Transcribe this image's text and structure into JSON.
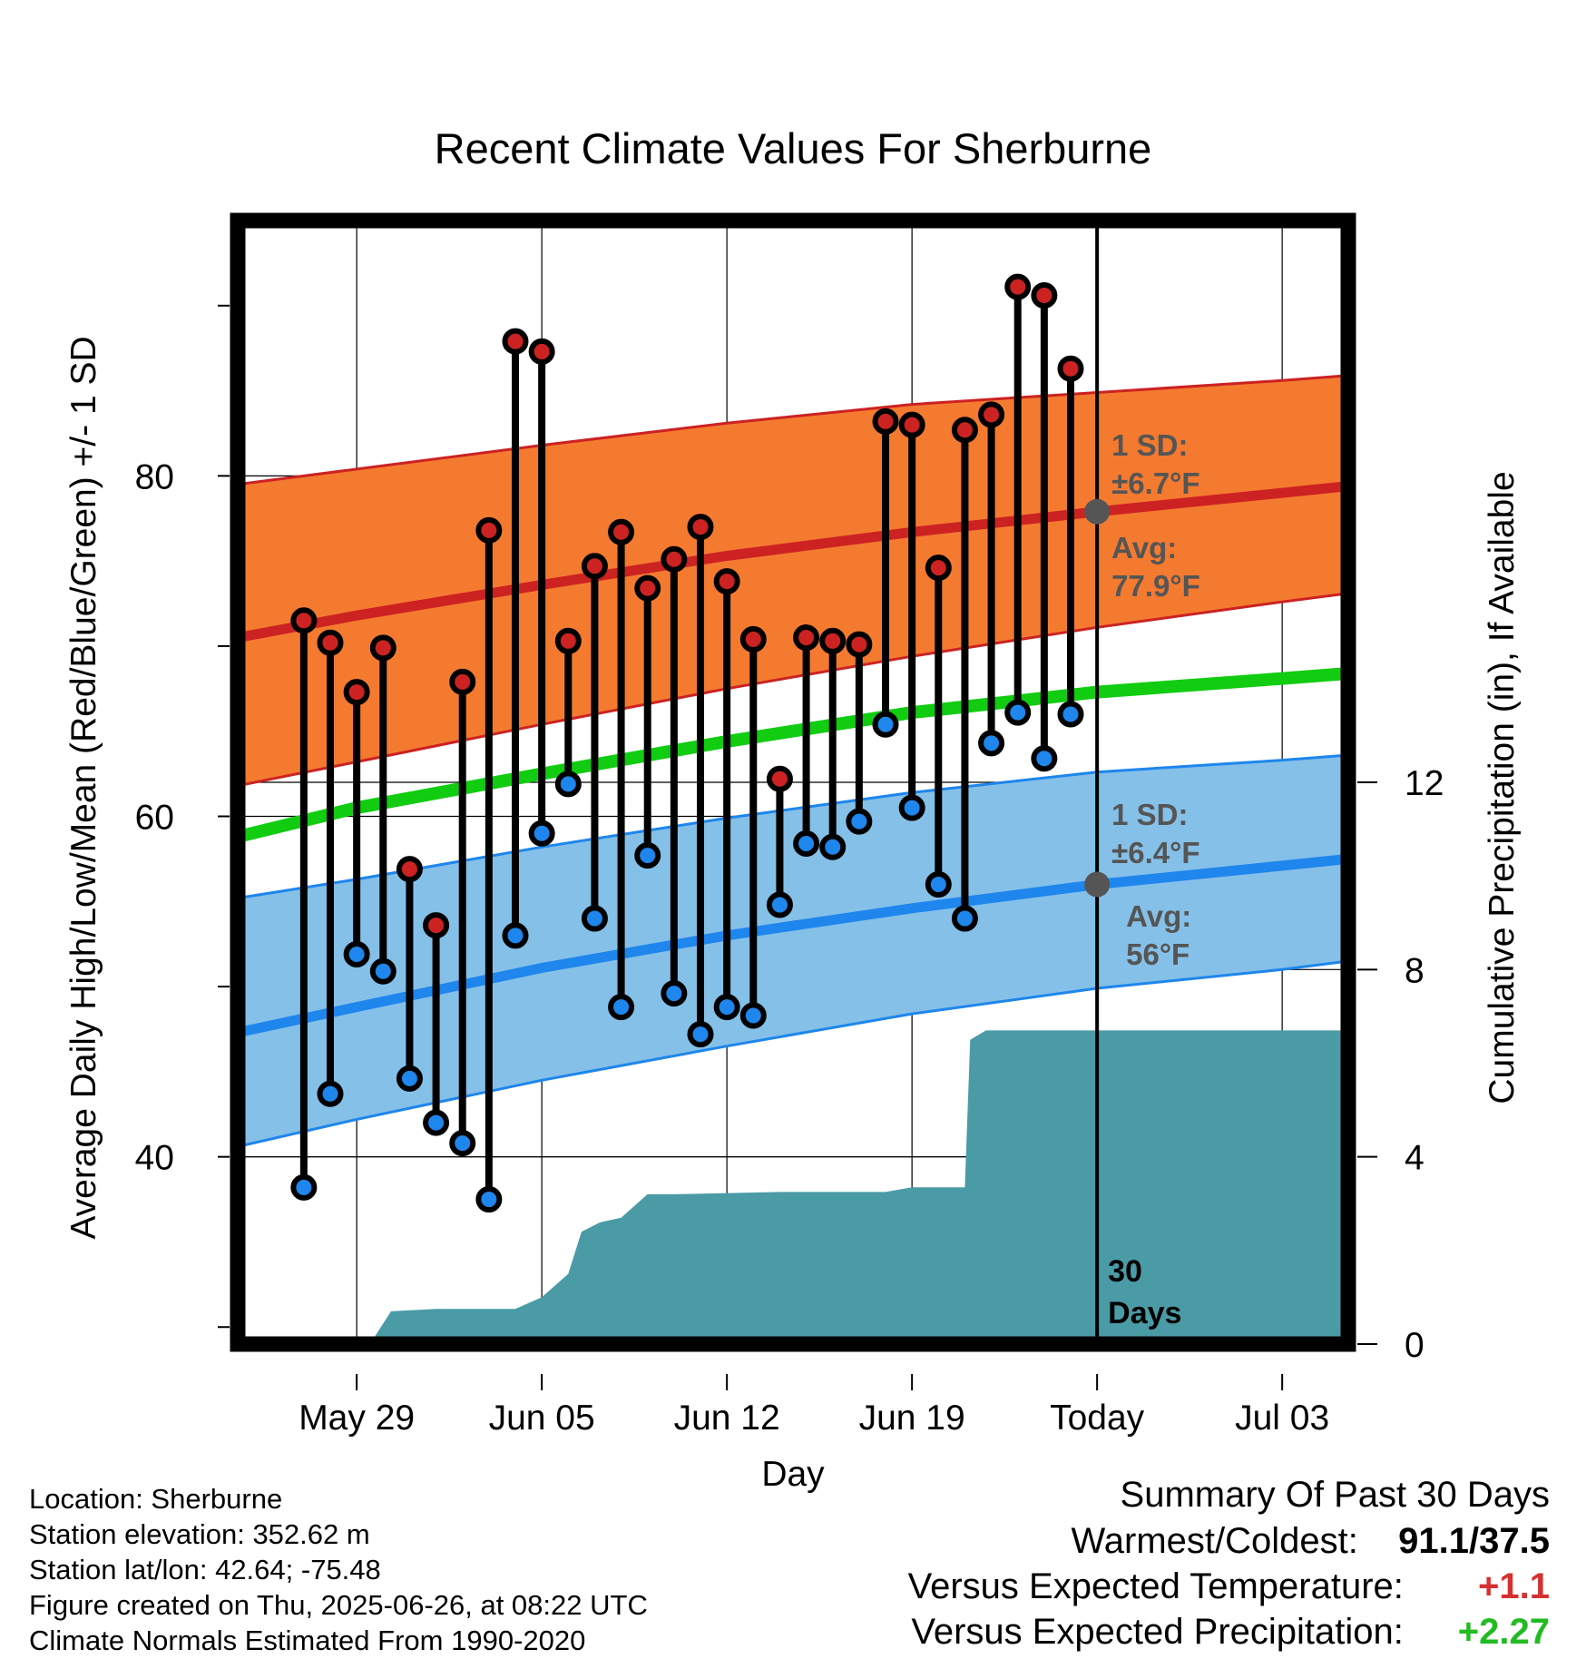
{
  "chart_data": {
    "type": "line",
    "title": "Recent Climate Values For Sherburne",
    "xlabel": "Day",
    "ylabel": "Average Daily High/Low/Mean (Red/Blue/Green) +/- 1 SD",
    "y2label": "Cumulative Precipitation (in), If Available",
    "x_ticks": [
      "May 29",
      "Jun 05",
      "Jun 12",
      "Jun 19",
      "Today",
      "Jul 03"
    ],
    "xlim_days": [
      -32.5,
      9.5
    ],
    "x_tick_days": [
      -28,
      -21,
      -14,
      -7,
      0,
      7
    ],
    "ylim": [
      29,
      95
    ],
    "y_ticks": [
      40,
      60,
      80
    ],
    "y2lim": [
      0,
      24
    ],
    "y2_ticks": [
      0,
      4,
      8,
      12
    ],
    "grid": true,
    "today_annotation": [
      "30",
      "Days"
    ],
    "days": [
      -30,
      -29,
      -28,
      -27,
      -26,
      -25,
      -24,
      -23,
      -22,
      -21,
      -20,
      -19,
      -18,
      -17,
      -16,
      -15,
      -14,
      -13,
      -12,
      -11,
      -10,
      -9,
      -8,
      -7,
      -6,
      -5,
      -4,
      -3,
      -2,
      -1
    ],
    "daily_high": [
      71.5,
      70.2,
      67.3,
      69.9,
      56.9,
      53.6,
      67.9,
      76.8,
      87.9,
      87.3,
      70.3,
      74.7,
      76.7,
      73.4,
      75.1,
      77.0,
      73.8,
      70.4,
      62.2,
      70.5,
      70.3,
      70.1,
      83.2,
      83.0,
      74.6,
      82.7,
      83.6,
      91.1,
      90.6,
      86.3
    ],
    "daily_low": [
      38.2,
      43.7,
      51.9,
      50.9,
      44.6,
      42.0,
      40.8,
      37.5,
      53.0,
      59.0,
      61.9,
      54.0,
      48.8,
      57.7,
      49.6,
      47.2,
      48.8,
      48.3,
      54.8,
      58.4,
      58.2,
      59.7,
      65.4,
      60.5,
      56.0,
      54.0,
      64.3,
      66.1,
      63.4,
      66.0
    ],
    "normals": {
      "days": [
        -32.5,
        -28,
        -21,
        -14,
        -7,
        0,
        7,
        9.5
      ],
      "high_avg": [
        70.5,
        71.8,
        73.6,
        75.3,
        76.7,
        77.9,
        79.0,
        79.4
      ],
      "high_upper": [
        79.5,
        80.4,
        81.8,
        83.1,
        84.2,
        84.9,
        85.6,
        85.9
      ],
      "high_lower": [
        61.8,
        63.2,
        65.4,
        67.5,
        69.4,
        71.1,
        72.6,
        73.1
      ],
      "mean_avg": [
        58.8,
        60.5,
        62.5,
        64.4,
        66.1,
        67.3,
        68.1,
        68.4
      ],
      "low_avg": [
        47.3,
        48.8,
        51.1,
        53.0,
        54.6,
        56.0,
        57.1,
        57.5
      ],
      "low_upper": [
        55.2,
        56.3,
        58.2,
        59.9,
        61.4,
        62.6,
        63.3,
        63.6
      ],
      "low_lower": [
        40.6,
        42.2,
        44.5,
        46.5,
        48.4,
        49.9,
        51.0,
        51.5
      ]
    },
    "precip_days": [
      -30,
      -29,
      -28,
      -27.5,
      -26.7,
      -25,
      -22,
      -21,
      -20,
      -19.5,
      -18.8,
      -18,
      -17,
      -16,
      -12,
      -8,
      -7,
      -6,
      -5,
      -4.8,
      -4.2,
      9.5
    ],
    "precip_cumulative": [
      0,
      0,
      0,
      0,
      0.7,
      0.75,
      0.75,
      1.0,
      1.5,
      2.4,
      2.6,
      2.7,
      3.2,
      3.2,
      3.25,
      3.25,
      3.35,
      3.35,
      3.35,
      6.5,
      6.7,
      6.7
    ],
    "annotations": {
      "high_sd_label": [
        "1 SD:",
        "±6.7°F"
      ],
      "high_avg_label": [
        "Avg:",
        "77.9°F"
      ],
      "low_sd_label": [
        "1 SD:",
        "±6.4°F"
      ],
      "low_avg_label": [
        "Avg:",
        "56°F"
      ],
      "today_high_avg": 77.9,
      "today_low_avg": 56
    },
    "colors": {
      "high_band": "#f47a30",
      "high_line": "#cc2222",
      "low_band": "#85c0e8",
      "low_line": "#1e86ec",
      "mean_line": "#11cc11",
      "precip": "#4a9ba5",
      "high_dot": "#cc2222",
      "low_dot": "#1e86ec",
      "annotation_text": "#555555"
    }
  },
  "metadata": {
    "location": "Location: Sherburne",
    "elevation": "Station elevation: 352.62 m",
    "latlon": "Station lat/lon: 42.64; -75.48",
    "created": "Figure created on Thu, 2025-06-26, at 08:22 UTC",
    "normals": "Climate Normals Estimated From 1990-2020"
  },
  "summary": {
    "title": "Summary Of Past 30 Days",
    "warm_cold_label": "Warmest/Coldest:",
    "warm_cold_value": "91.1/37.5",
    "temp_label": "Versus Expected Temperature:",
    "temp_value": "+1.1",
    "temp_color": "#d63030",
    "precip_label": "Versus Expected Precipitation:",
    "precip_value": "+2.27",
    "precip_color": "#22bb22"
  }
}
